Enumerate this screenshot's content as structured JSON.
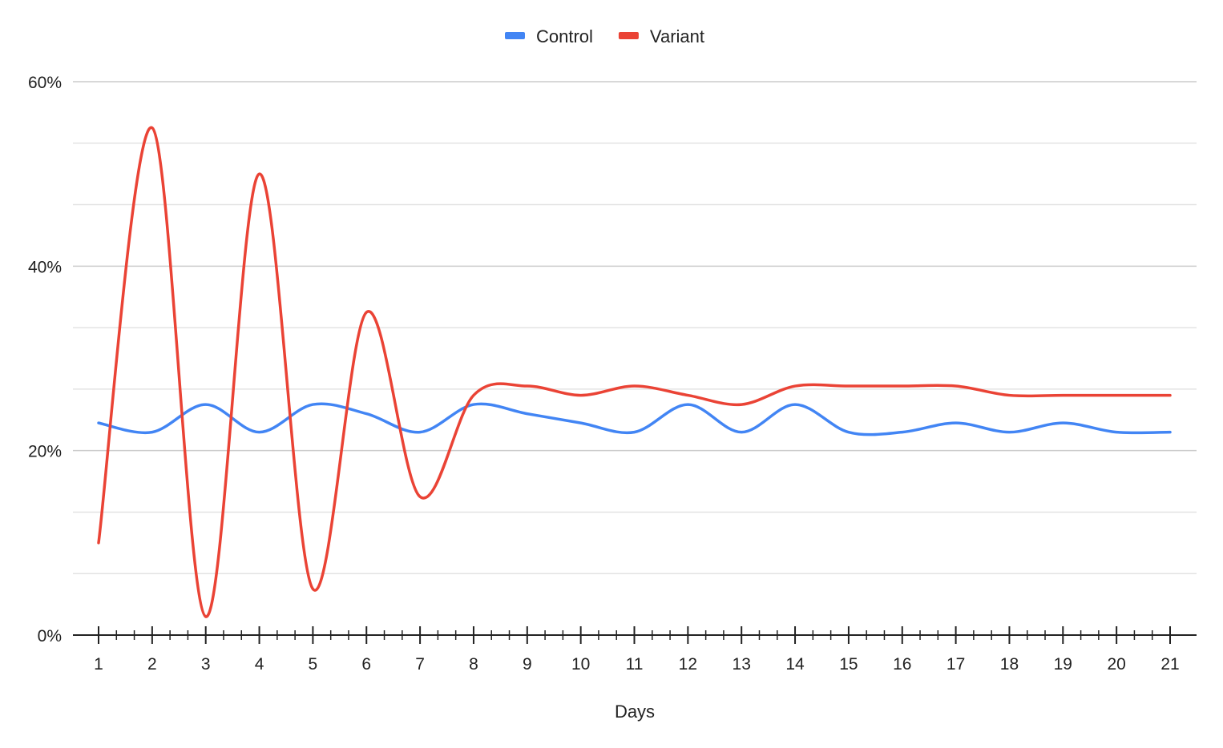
{
  "chart_data": {
    "type": "line",
    "title": "",
    "xlabel": "Days",
    "ylabel": "",
    "categories": [
      "1",
      "2",
      "3",
      "4",
      "5",
      "6",
      "7",
      "8",
      "9",
      "10",
      "11",
      "12",
      "13",
      "14",
      "15",
      "16",
      "17",
      "18",
      "19",
      "20",
      "21"
    ],
    "y_ticks": [
      "0%",
      "20%",
      "40%",
      "60%"
    ],
    "ylim": [
      0,
      0.6
    ],
    "y_gridline_step": 0.0667,
    "y_label_step": 0.2,
    "minor_x_ticks_per_interval": 2,
    "grid": true,
    "legend_position": "top",
    "curve": "smooth",
    "series": [
      {
        "name": "Control",
        "color": "#4285f4",
        "values": [
          0.23,
          0.22,
          0.25,
          0.22,
          0.25,
          0.24,
          0.22,
          0.25,
          0.24,
          0.23,
          0.22,
          0.25,
          0.22,
          0.25,
          0.22,
          0.22,
          0.23,
          0.22,
          0.23,
          0.22,
          0.22
        ]
      },
      {
        "name": "Variant",
        "color": "#ea4335",
        "values": [
          0.1,
          0.55,
          0.02,
          0.5,
          0.05,
          0.35,
          0.15,
          0.26,
          0.27,
          0.26,
          0.27,
          0.26,
          0.25,
          0.27,
          0.27,
          0.27,
          0.27,
          0.26,
          0.26,
          0.26,
          0.26
        ]
      }
    ]
  }
}
